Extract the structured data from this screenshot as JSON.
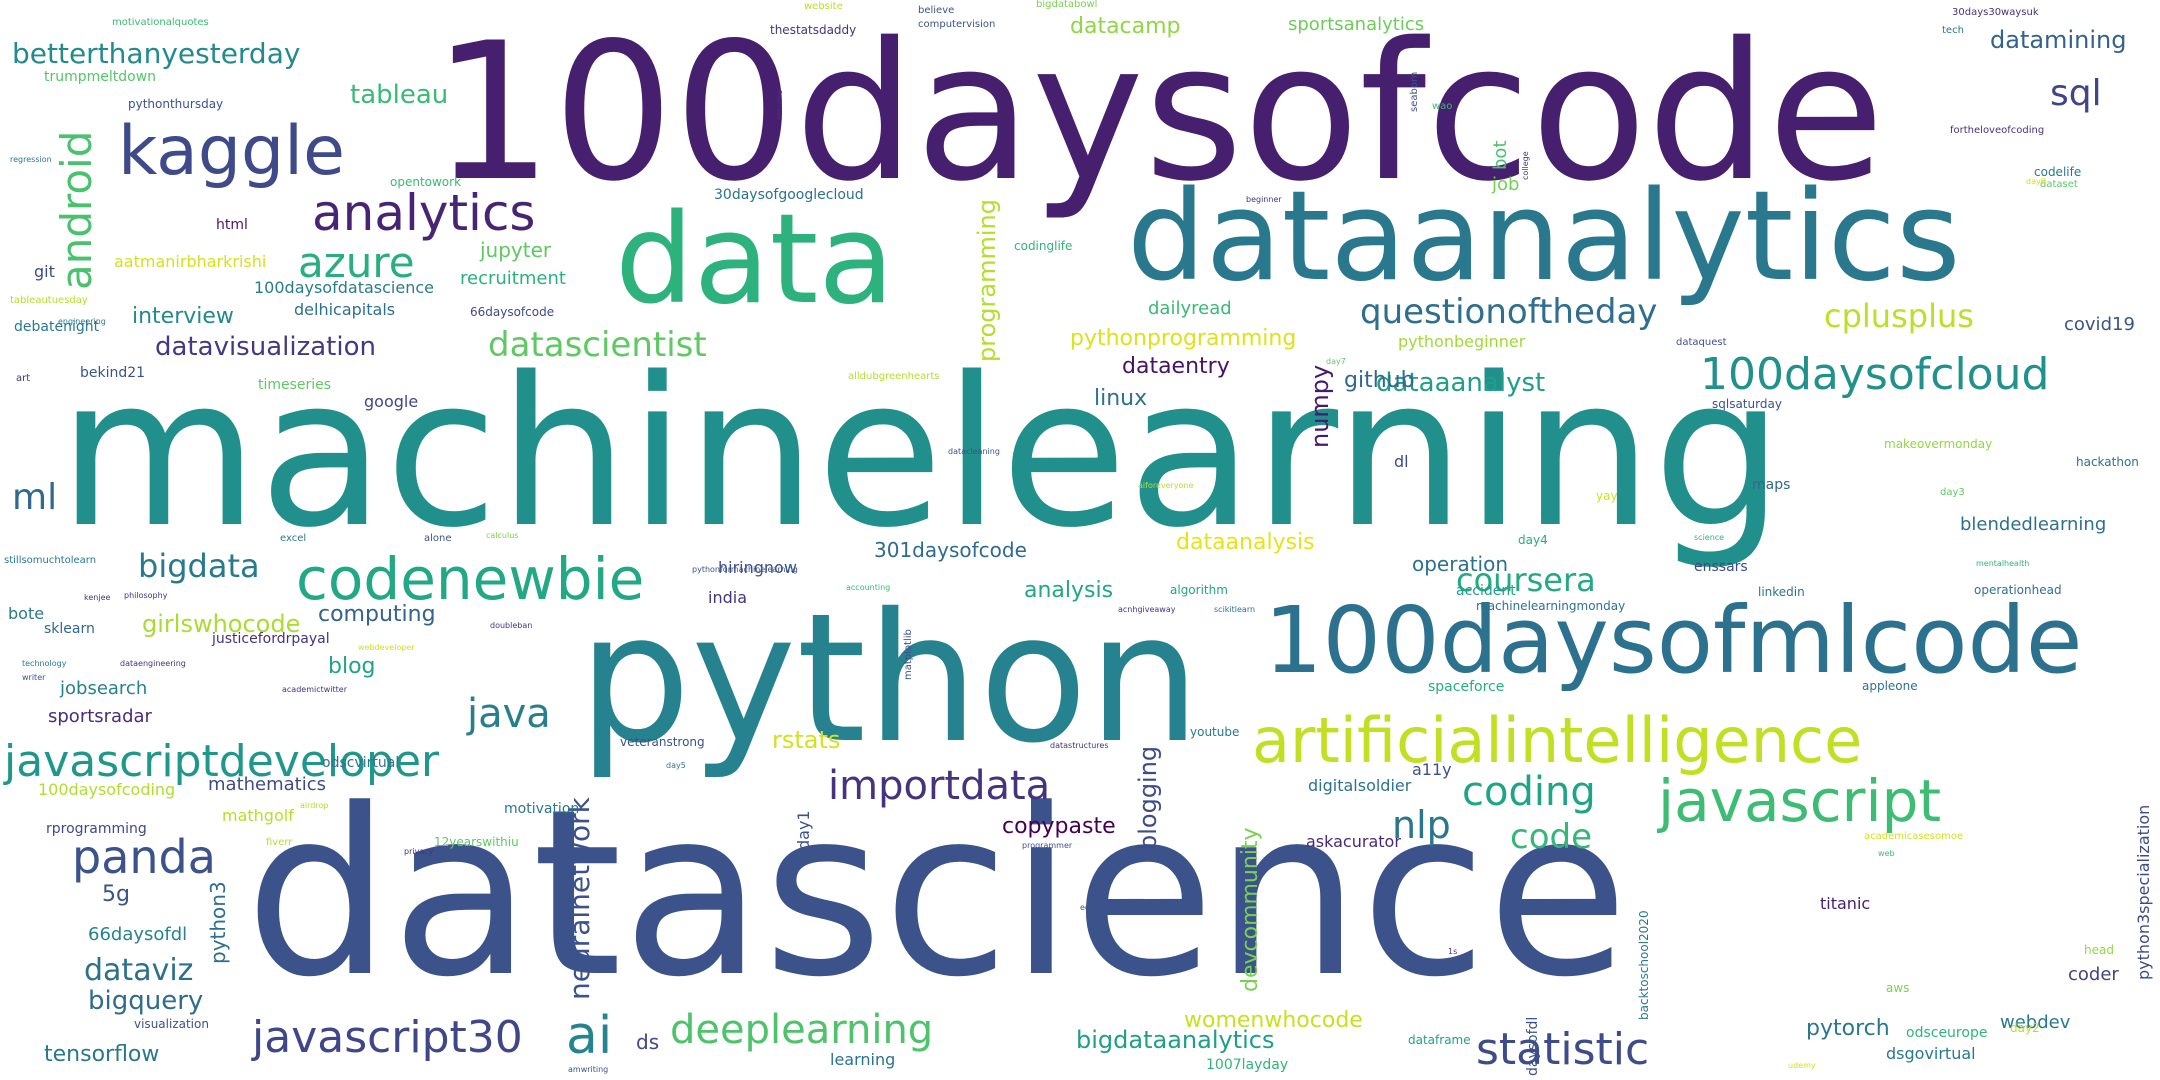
{
  "words": [
    {
      "text": "100daysofcode",
      "color": "#471f6f"
    },
    {
      "text": "machinelearning",
      "color": "#21908c"
    },
    {
      "text": "datascience",
      "color": "#3b528b"
    },
    {
      "text": "python",
      "color": "#26828e"
    },
    {
      "text": "dataanalytics",
      "color": "#2a788e"
    },
    {
      "text": "data",
      "color": "#2db27d"
    },
    {
      "text": "100daysofmlcode",
      "color": "#2c728e"
    },
    {
      "text": "kaggle",
      "color": "#3e4a89"
    },
    {
      "text": "artificialintelligence",
      "color": "#c2df23"
    },
    {
      "text": "javascript",
      "color": "#3dbc74"
    },
    {
      "text": "codenewbie",
      "color": "#22a884"
    },
    {
      "text": "analytics",
      "color": "#482475"
    },
    {
      "text": "javascriptdeveloper",
      "color": "#1f988b"
    },
    {
      "text": "100daysofcloud",
      "color": "#21918c"
    },
    {
      "text": "javascript30",
      "color": "#3f4788"
    },
    {
      "text": "statistic",
      "color": "#3e4c8a"
    },
    {
      "text": "importdata",
      "color": "#46337e"
    },
    {
      "text": "ai",
      "color": "#25848e"
    },
    {
      "text": "azure",
      "color": "#28ae80"
    },
    {
      "text": "android",
      "color": "#4ac16d"
    },
    {
      "text": "deeplearning",
      "color": "#4ec36b"
    },
    {
      "text": "questionoftheday",
      "color": "#2e6e8e"
    },
    {
      "text": "datascientist",
      "color": "#5ec962"
    },
    {
      "text": "panda",
      "color": "#3b528b"
    },
    {
      "text": "coding",
      "color": "#20a486"
    },
    {
      "text": "bigdata",
      "color": "#29798e"
    },
    {
      "text": "coursera",
      "color": "#23a983"
    },
    {
      "text": "java",
      "color": "#277f8e"
    },
    {
      "text": "nlp",
      "color": "#2a768e"
    },
    {
      "text": "code",
      "color": "#35b779"
    },
    {
      "text": "betterthanyesterday",
      "color": "#238a8d"
    },
    {
      "text": "sql",
      "color": "#414487"
    },
    {
      "text": "ml",
      "color": "#31688e"
    },
    {
      "text": "cplusplus",
      "color": "#bddf26"
    },
    {
      "text": "datavisualization",
      "color": "#443983"
    },
    {
      "text": "tableau",
      "color": "#3aba76"
    },
    {
      "text": "dataviz",
      "color": "#2d708e"
    },
    {
      "text": "girlswhocode",
      "color": "#aadc32"
    },
    {
      "text": "datamining",
      "color": "#33638d"
    },
    {
      "text": "bigquery",
      "color": "#2f6c8e"
    },
    {
      "text": "dataaanalyst",
      "color": "#1f9e89"
    },
    {
      "text": "neuralnetwork",
      "color": "#3b528b"
    },
    {
      "text": "programming",
      "color": "#b5de2b"
    },
    {
      "text": "bigdataanalytics",
      "color": "#1f9f88"
    },
    {
      "text": "datacamp",
      "color": "#8fd744"
    },
    {
      "text": "tensorflow",
      "color": "#2a788e"
    },
    {
      "text": "copypaste",
      "color": "#440154"
    },
    {
      "text": "computing",
      "color": "#34618d"
    },
    {
      "text": "blog",
      "color": "#20a386"
    },
    {
      "text": "dataentry",
      "color": "#471365"
    },
    {
      "text": "github",
      "color": "#31688e"
    },
    {
      "text": "rstats",
      "color": "#d2e21b"
    },
    {
      "text": "womenwhocode",
      "color": "#c8e020"
    },
    {
      "text": "pythonprogramming",
      "color": "#dde318"
    },
    {
      "text": "dataanalysis",
      "color": "#e5e419"
    },
    {
      "text": "interview",
      "color": "#23898e"
    },
    {
      "text": "5g",
      "color": "#3b528b"
    },
    {
      "text": "linux",
      "color": "#2c728e"
    },
    {
      "text": "blogging",
      "color": "#3e4a89"
    },
    {
      "text": "devcommunity",
      "color": "#7ad151"
    },
    {
      "text": "pytorch",
      "color": "#2a778e"
    },
    {
      "text": "numpy",
      "color": "#481a6c"
    },
    {
      "text": "jupyter",
      "color": "#5ec962"
    },
    {
      "text": "recruitment",
      "color": "#2ab07f"
    },
    {
      "text": "301daysofcode",
      "color": "#2f6b8e"
    },
    {
      "text": "analysis",
      "color": "#22a785"
    },
    {
      "text": "operation",
      "color": "#2c718e"
    },
    {
      "text": "sportsradar",
      "color": "#472d7b"
    },
    {
      "text": "mathematics",
      "color": "#3d4d8a"
    },
    {
      "text": "python3",
      "color": "#2e6d8e"
    },
    {
      "text": "66daysofdl",
      "color": "#26828e"
    },
    {
      "text": "blendedlearning",
      "color": "#2d708e"
    },
    {
      "text": "webdev",
      "color": "#2a788e"
    },
    {
      "text": "ds",
      "color": "#3f4889"
    },
    {
      "text": "covid19",
      "color": "#3b528b"
    },
    {
      "text": "sportsanalytics",
      "color": "#6ccd5a"
    },
    {
      "text": "jobsearch",
      "color": "#26818e"
    },
    {
      "text": "aatmanirbharkrishi",
      "color": "#d2e21b"
    },
    {
      "text": "100daysofdatascience",
      "color": "#287c8e"
    },
    {
      "text": "delhicapitals",
      "color": "#2c718e"
    },
    {
      "text": "mathgolf",
      "color": "#bade28"
    },
    {
      "text": "bot",
      "color": "#4ac16d"
    },
    {
      "text": "job",
      "color": "#73d056"
    },
    {
      "text": "dailyread",
      "color": "#3aba76"
    },
    {
      "text": "100daysofcoding",
      "color": "#b2dd2d"
    },
    {
      "text": "timeseries",
      "color": "#5ec962"
    },
    {
      "text": "google",
      "color": "#3f4788"
    },
    {
      "text": "digitalsoldier",
      "color": "#2c738e"
    },
    {
      "text": "askacurator",
      "color": "#482979"
    },
    {
      "text": "titanic",
      "color": "#482173"
    },
    {
      "text": "dsgovirtual",
      "color": "#2a788e"
    },
    {
      "text": "coder",
      "color": "#414487"
    },
    {
      "text": "odsceurope",
      "color": "#2fb47c"
    },
    {
      "text": "trumpmeltdown",
      "color": "#54c568"
    },
    {
      "text": "pythonbeginner",
      "color": "#a0da39"
    },
    {
      "text": "motivation",
      "color": "#2a788e"
    },
    {
      "text": "day1",
      "color": "#3b528b"
    },
    {
      "text": "html",
      "color": "#481769"
    },
    {
      "text": "git",
      "color": "#3e4a89"
    },
    {
      "text": "debatenight",
      "color": "#2a788e"
    },
    {
      "text": "bekind21",
      "color": "#3b528b"
    },
    {
      "text": "rprogramming",
      "color": "#3e4989"
    },
    {
      "text": "bote",
      "color": "#2a788e"
    },
    {
      "text": "sklearn",
      "color": "#31688e"
    },
    {
      "text": "justicefordrpayal",
      "color": "#46337e"
    },
    {
      "text": "india",
      "color": "#46337e"
    },
    {
      "text": "hiringnow",
      "color": "#3b528b"
    },
    {
      "text": "learning",
      "color": "#2c728e"
    },
    {
      "text": "1007layday",
      "color": "#2fb47c"
    },
    {
      "text": "spaceforce",
      "color": "#25ac82"
    },
    {
      "text": "accident",
      "color": "#1fa088"
    },
    {
      "text": "enssars",
      "color": "#3e4989"
    },
    {
      "text": "linkedin",
      "color": "#2c728e"
    },
    {
      "text": "operationhead",
      "color": "#2c738e"
    },
    {
      "text": "machinelearningmonday",
      "color": "#2c728e"
    },
    {
      "text": "a11y",
      "color": "#3b528b"
    },
    {
      "text": "odscvirtual",
      "color": "#2c738e"
    },
    {
      "text": "veteranstrong",
      "color": "#3b528b"
    },
    {
      "text": "algorithm",
      "color": "#22a785"
    },
    {
      "text": "maps",
      "color": "#30698e"
    },
    {
      "text": "dl",
      "color": "#3d4d8a"
    },
    {
      "text": "youtube",
      "color": "#2a788e"
    },
    {
      "text": "aws",
      "color": "#7ad151"
    },
    {
      "text": "day2",
      "color": "#b5de2b"
    },
    {
      "text": "dataframe",
      "color": "#20a386"
    },
    {
      "text": "makeovermonday",
      "color": "#93d741"
    },
    {
      "text": "hackathon",
      "color": "#2c728e"
    },
    {
      "text": "sqlsaturday",
      "color": "#3b528b"
    },
    {
      "text": "30daysofgooglecloud",
      "color": "#2c728e"
    },
    {
      "text": "codinglife",
      "color": "#2fb47c"
    },
    {
      "text": "66daysofcode",
      "color": "#3e4a89"
    },
    {
      "text": "visualization",
      "color": "#3b528b"
    },
    {
      "text": "12yearswithiu",
      "color": "#5ec962"
    },
    {
      "text": "daysofdl",
      "color": "#3b528b"
    },
    {
      "text": "backtoschool2020",
      "color": "#2a788e"
    },
    {
      "text": "python3specialization",
      "color": "#3e4a89"
    },
    {
      "text": "head",
      "color": "#93d741"
    },
    {
      "text": "day3",
      "color": "#5ec962"
    },
    {
      "text": "day4",
      "color": "#25ab82"
    },
    {
      "text": "codelife",
      "color": "#2a788e"
    },
    {
      "text": "motivationalquotes",
      "color": "#3aba76"
    },
    {
      "text": "pythonthursday",
      "color": "#3b528b"
    },
    {
      "text": "opentowork",
      "color": "#3aba76"
    },
    {
      "text": "thestatsdaddy",
      "color": "#46337e"
    },
    {
      "text": "computervision",
      "color": "#3b528b"
    },
    {
      "text": "believe",
      "color": "#3b528b"
    },
    {
      "text": "website",
      "color": "#bade28"
    },
    {
      "text": "bigdatabowl",
      "color": "#7ad151"
    },
    {
      "text": "30days30waysuk",
      "color": "#46337e"
    },
    {
      "text": "tech",
      "color": "#2c728e"
    },
    {
      "text": "fortheloveofcoding",
      "color": "#46337e"
    },
    {
      "text": "seaborn",
      "color": "#3b528b"
    },
    {
      "text": "wao",
      "color": "#3aba76"
    },
    {
      "text": "resume",
      "color": "#46337e"
    },
    {
      "text": "college",
      "color": "#46337e"
    },
    {
      "text": "dataset",
      "color": "#5ec962"
    },
    {
      "text": "beginner",
      "color": "#46337e"
    },
    {
      "text": "regression",
      "color": "#2a788e"
    },
    {
      "text": "tableautuesday",
      "color": "#b5de2b"
    },
    {
      "text": "art",
      "color": "#46337e"
    },
    {
      "text": "dataquest",
      "color": "#3b528b"
    },
    {
      "text": "alldubgreenhearts",
      "color": "#b5de2b"
    },
    {
      "text": "datacleaning",
      "color": "#3b528b"
    },
    {
      "text": "day7",
      "color": "#5ec962"
    },
    {
      "text": "yay",
      "color": "#d2e21b"
    },
    {
      "text": "aiforeveryone",
      "color": "#bade28"
    },
    {
      "text": "excel",
      "color": "#2a788e"
    },
    {
      "text": "alone",
      "color": "#3b528b"
    },
    {
      "text": "calculus",
      "color": "#7ad151"
    },
    {
      "text": "stillsomuchtolearn",
      "color": "#2a788e"
    },
    {
      "text": "kenjee",
      "color": "#46337e"
    },
    {
      "text": "philosophy",
      "color": "#46337e"
    },
    {
      "text": "pythonformachinelearning",
      "color": "#3b528b"
    },
    {
      "text": "accounting",
      "color": "#3aba76"
    },
    {
      "text": "matplotlib",
      "color": "#3b528b"
    },
    {
      "text": "acnhgiveaway",
      "color": "#46337e"
    },
    {
      "text": "scikitlearn",
      "color": "#2c728e"
    },
    {
      "text": "science",
      "color": "#2fb47c"
    },
    {
      "text": "mentalhealth",
      "color": "#2fb47c"
    },
    {
      "text": "technology",
      "color": "#2a788e"
    },
    {
      "text": "writer",
      "color": "#3b528b"
    },
    {
      "text": "dataengineering",
      "color": "#46337e"
    },
    {
      "text": "webdeveloper",
      "color": "#d2e21b"
    },
    {
      "text": "academictwitter",
      "color": "#46337e"
    },
    {
      "text": "doubleban",
      "color": "#46337e"
    },
    {
      "text": "appleone",
      "color": "#2c728e"
    },
    {
      "text": "academicasesomoe",
      "color": "#d2e21b"
    },
    {
      "text": "web",
      "color": "#3aba76"
    },
    {
      "text": "airdrop",
      "color": "#b5de2b"
    },
    {
      "text": "fiverr",
      "color": "#b5de2b"
    },
    {
      "text": "privacy",
      "color": "#46337e"
    },
    {
      "text": "programmer",
      "color": "#3b528b"
    },
    {
      "text": "eda",
      "color": "#3b528b"
    },
    {
      "text": "1s",
      "color": "#46337e"
    },
    {
      "text": "day5",
      "color": "#2a788e"
    },
    {
      "text": "datastructures",
      "color": "#46337e"
    },
    {
      "text": "amwriting",
      "color": "#3b528b"
    },
    {
      "text": "udemy",
      "color": "#d2e21b"
    },
    {
      "text": "engineering",
      "color": "#2a788e"
    },
    {
      "text": "day6",
      "color": "#d2e21b"
    }
  ]
}
